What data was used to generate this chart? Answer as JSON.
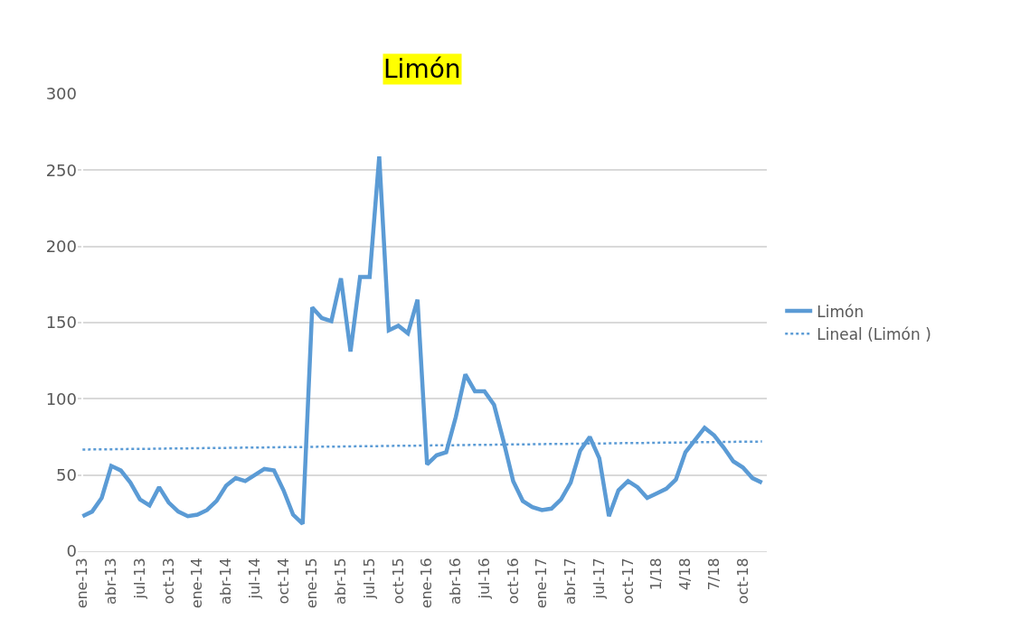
{
  "chart_data": {
    "type": "line",
    "title": "Limón",
    "categories": [
      "ene-13",
      null,
      null,
      "abr-13",
      null,
      null,
      "jul-13",
      null,
      null,
      "oct-13",
      null,
      null,
      "ene-14",
      null,
      null,
      "abr-14",
      null,
      null,
      "jul-14",
      null,
      null,
      "oct-14",
      null,
      null,
      "ene-15",
      null,
      null,
      "abr-15",
      null,
      null,
      "jul-15",
      null,
      null,
      "oct-15",
      null,
      null,
      "ene-16",
      null,
      null,
      "abr-16",
      null,
      null,
      "jul-16",
      null,
      null,
      "oct-16",
      null,
      null,
      "ene-17",
      null,
      null,
      "abr-17",
      null,
      null,
      "jul-17",
      null,
      null,
      "oct-17",
      null,
      null,
      "1/18",
      null,
      null,
      "4/18",
      null,
      null,
      "7/18",
      null,
      null,
      "oct-18",
      null,
      null
    ],
    "series": [
      {
        "name": "Limón",
        "color": "#5b9bd5",
        "line_style": "solid",
        "values": [
          23,
          26,
          35,
          56,
          53,
          45,
          34,
          30,
          42,
          32,
          26,
          23,
          24,
          27,
          33,
          43,
          48,
          46,
          50,
          54,
          53,
          40,
          24,
          18,
          160,
          153,
          151,
          179,
          131,
          180,
          180,
          259,
          145,
          148,
          143,
          165,
          57,
          63,
          65,
          88,
          116,
          105,
          105,
          96,
          72,
          46,
          33,
          29,
          27,
          28,
          34,
          45,
          66,
          75,
          61,
          23,
          40,
          46,
          42,
          35,
          38,
          41,
          47,
          65,
          73,
          81,
          76,
          68,
          59,
          55,
          48,
          45
        ]
      },
      {
        "name": "Lineal (Limón )",
        "color": "#5b9bd5",
        "line_style": "dotted",
        "values": [
          66.7,
          66.8,
          66.8,
          66.9,
          67.0,
          67.1,
          67.1,
          67.2,
          67.3,
          67.4,
          67.4,
          67.5,
          67.6,
          67.7,
          67.7,
          67.8,
          67.9,
          68.0,
          68.0,
          68.1,
          68.2,
          68.3,
          68.3,
          68.4,
          68.5,
          68.6,
          68.6,
          68.7,
          68.8,
          68.9,
          68.9,
          69.0,
          69.1,
          69.2,
          69.2,
          69.3,
          69.4,
          69.5,
          69.5,
          69.6,
          69.7,
          69.8,
          69.8,
          69.9,
          70.0,
          70.1,
          70.1,
          70.2,
          70.3,
          70.4,
          70.4,
          70.5,
          70.6,
          70.7,
          70.7,
          70.8,
          70.9,
          71.0,
          71.0,
          71.1,
          71.2,
          71.3,
          71.3,
          71.4,
          71.5,
          71.6,
          71.6,
          71.7,
          71.8,
          71.9,
          71.9,
          72.0
        ]
      }
    ],
    "ylim": [
      0,
      300
    ],
    "yticks": [
      0,
      50,
      100,
      150,
      200,
      250,
      300
    ],
    "grid": "y",
    "legend": "right",
    "marker": "none"
  }
}
